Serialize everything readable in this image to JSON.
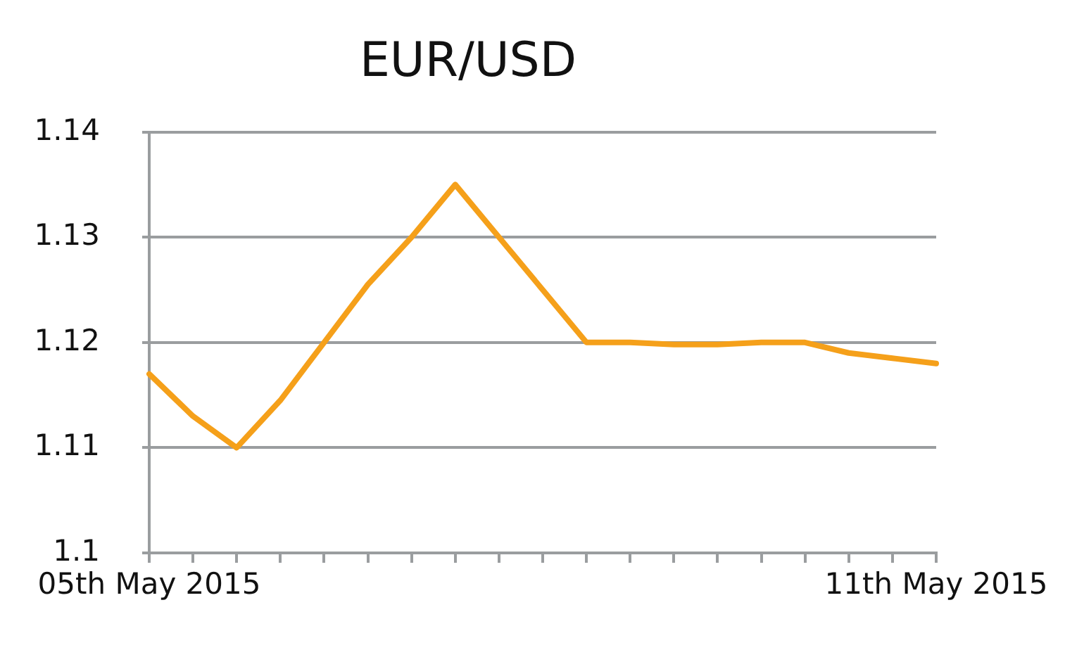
{
  "chart_data": {
    "type": "line",
    "title": "EUR/USD",
    "categories": [
      "05th May 2015",
      null,
      null,
      null,
      null,
      null,
      null,
      null,
      null,
      null,
      null,
      null,
      null,
      null,
      null,
      null,
      null,
      null,
      "11th May 2015"
    ],
    "values": [
      1.117,
      1.113,
      1.11,
      1.1145,
      1.12,
      1.1255,
      1.13,
      1.135,
      1.13,
      1.125,
      1.12,
      1.12,
      1.1198,
      1.1198,
      1.12,
      1.12,
      1.119,
      1.1185,
      1.118
    ],
    "color": "#f5a01a",
    "ylim": [
      1.1,
      1.14
    ],
    "yticks": [
      1.1,
      1.11,
      1.12,
      1.13,
      1.14
    ],
    "grid": "y",
    "legend": false,
    "marker": "none",
    "line_style": "solid"
  }
}
